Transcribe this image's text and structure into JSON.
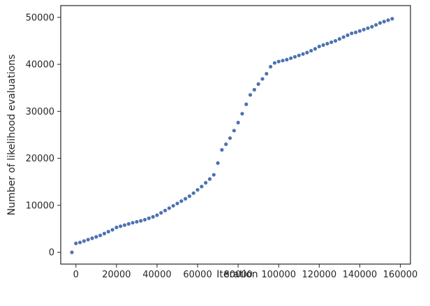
{
  "chart_data": {
    "type": "scatter",
    "title": "",
    "xlabel": "Iteration",
    "ylabel": "Number of likelihood evaluations",
    "xlim": [
      -7500,
      165000
    ],
    "ylim": [
      -2500,
      52500
    ],
    "xticks": [
      0,
      20000,
      40000,
      60000,
      80000,
      100000,
      120000,
      140000,
      160000
    ],
    "yticks": [
      0,
      10000,
      20000,
      30000,
      40000,
      50000
    ],
    "grid": false,
    "marker_color": "#4c72b0",
    "series": [
      {
        "x": [
          -2000,
          0,
          2000,
          4000,
          6000,
          8000,
          10000,
          12000,
          14000,
          16000,
          18000,
          20000,
          22000,
          24000,
          26000,
          28000,
          30000,
          32000,
          34000,
          36000,
          38000,
          40000,
          42000,
          44000,
          46000,
          48000,
          50000,
          52000,
          54000,
          56000,
          58000,
          60000,
          62000,
          64000,
          66000,
          68000,
          70000,
          72000,
          74000,
          76000,
          78000,
          80000,
          82000,
          84000,
          86000,
          88000,
          90000,
          92000,
          94000,
          96000,
          98000,
          100000,
          102000,
          104000,
          106000,
          108000,
          110000,
          112000,
          114000,
          116000,
          118000,
          120000,
          122000,
          124000,
          126000,
          128000,
          130000,
          132000,
          134000,
          136000,
          138000,
          140000,
          142000,
          144000,
          146000,
          148000,
          150000,
          152000,
          154000,
          156000
        ],
        "y": [
          0,
          1900,
          2100,
          2400,
          2700,
          3000,
          3300,
          3600,
          4000,
          4400,
          4800,
          5300,
          5550,
          5800,
          6050,
          6300,
          6500,
          6700,
          6950,
          7250,
          7550,
          7900,
          8400,
          8900,
          9400,
          9900,
          10400,
          10900,
          11400,
          11950,
          12600,
          13300,
          14000,
          14800,
          15600,
          16500,
          19000,
          21800,
          23000,
          24300,
          25900,
          27600,
          29500,
          31500,
          33500,
          34600,
          35800,
          36900,
          38000,
          39500,
          40300,
          40600,
          40800,
          41000,
          41300,
          41600,
          41900,
          42200,
          42500,
          42900,
          43300,
          43800,
          44100,
          44400,
          44700,
          45000,
          45400,
          45800,
          46200,
          46600,
          46800,
          47100,
          47400,
          47700,
          48000,
          48400,
          48800,
          49100,
          49400,
          49700
        ]
      }
    ]
  }
}
